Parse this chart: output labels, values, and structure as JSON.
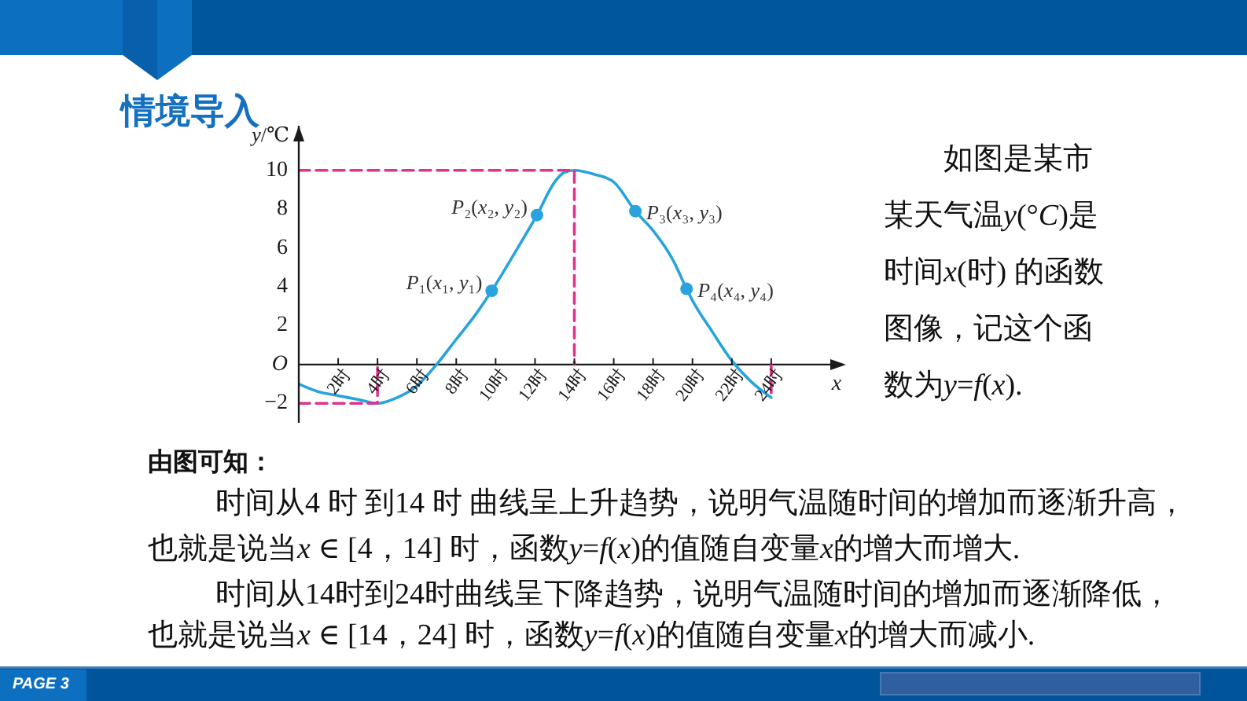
{
  "chart_data": {
    "type": "line",
    "title": "情境导入",
    "xlabel": "x",
    "ylabel": "y/℃",
    "xlim": [
      0,
      27.8
    ],
    "ylim": [
      -3,
      12.3
    ],
    "xticks": [
      {
        "value": 2,
        "label": "2时"
      },
      {
        "value": 4,
        "label": "4时"
      },
      {
        "value": 6,
        "label": "6时"
      },
      {
        "value": 8,
        "label": "8时"
      },
      {
        "value": 10,
        "label": "10时"
      },
      {
        "value": 12,
        "label": "12时"
      },
      {
        "value": 14,
        "label": "14时"
      },
      {
        "value": 16,
        "label": "16时"
      },
      {
        "value": 18,
        "label": "18时"
      },
      {
        "value": 20,
        "label": "20时"
      },
      {
        "value": 22,
        "label": "22时"
      },
      {
        "value": 24,
        "label": "24时"
      }
    ],
    "yticks": [
      {
        "value": -2,
        "label": "−2"
      },
      {
        "value": 0,
        "label": "O"
      },
      2,
      4,
      6,
      8,
      10
    ],
    "marker": "none",
    "series": [
      {
        "x": [
          0,
          1,
          2,
          3,
          4,
          5,
          6,
          7,
          8,
          9,
          9.8,
          11,
          12.1,
          13,
          13.5,
          14,
          15,
          16,
          17.1,
          18,
          19,
          19.7,
          20,
          21,
          22,
          23,
          24
        ],
        "values": [
          -1.0,
          -1.4,
          -1.6,
          -1.8,
          -2.0,
          -1.7,
          -1.1,
          0,
          1.3,
          2.6,
          3.8,
          5.8,
          7.7,
          9.4,
          9.9,
          10,
          9.8,
          9.4,
          7.9,
          6.9,
          5.4,
          3.9,
          3.3,
          1.7,
          0.2,
          -0.9,
          -1.7
        ],
        "color": "#29a3dd",
        "line_style": "solid"
      },
      {
        "x": [
          0,
          14,
          14
        ],
        "values": [
          10,
          10,
          0
        ],
        "color": "#e0338c",
        "line_style": "dashed"
      },
      {
        "x": [
          0,
          4,
          4
        ],
        "values": [
          -2,
          -2,
          0
        ],
        "color": "#e0338c",
        "line_style": "dashed"
      },
      {
        "x": [
          24,
          24
        ],
        "values": [
          0,
          -1.7
        ],
        "color": "#e0338c",
        "line_style": "dashed"
      },
      {
        "type": "scatter",
        "x": [
          9.8,
          12.1,
          17.1,
          19.7
        ],
        "values": [
          3.8,
          7.7,
          7.9,
          3.9
        ],
        "color": "#29a3dd",
        "marker": "circle"
      }
    ],
    "annotations": [
      {
        "text": "P₁(x₁, y₁)",
        "x": 9.8,
        "y": 3.8
      },
      {
        "text": "P₂(x₂, y₂)",
        "x": 12.1,
        "y": 7.7
      },
      {
        "text": "P₃(x₃, y₃)",
        "x": 17.1,
        "y": 7.9
      },
      {
        "text": "P₄(x₄, y₄)",
        "x": 19.7,
        "y": 3.9
      },
      "如图是某市某天气温y(°C)是时间x(时) 的函数图像，记这个函数为y=f(x).",
      "由图可知：",
      "时间从4 时 到14 时 曲线呈上升趋势，说明气温随时间的增加而逐渐升高，",
      "也就是说当x ∈ [4，14] 时，函数y=f(x)的值随自变量x的增大而增大.",
      "时间从14时到24时曲线呈下降趋势，说明气温随时间的增加而逐渐降低，",
      "也就是说当x ∈ [14，24] 时，函数y=f(x)的值随自变量x的增大而减小.",
      "PAGE 3"
    ]
  }
}
